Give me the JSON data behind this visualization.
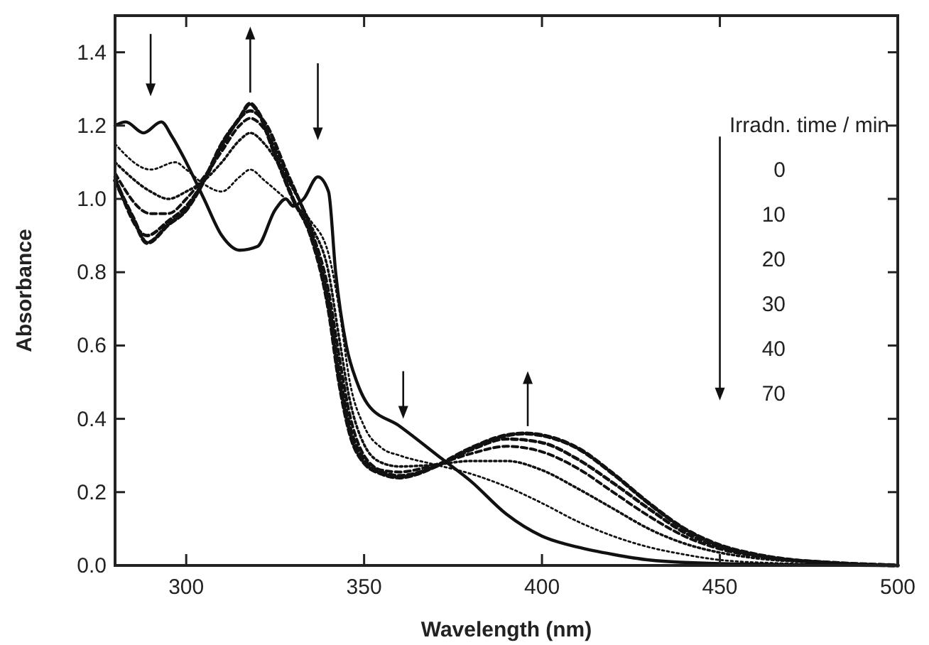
{
  "chart_data": {
    "type": "line",
    "xlabel": "Wavelength (nm)",
    "ylabel": "Absorbance",
    "xlim": [
      280,
      500
    ],
    "xticks": [
      300,
      350,
      400,
      450,
      500
    ],
    "ylim": [
      0,
      1.5
    ],
    "yticks": [
      {
        "value": 0,
        "label": "0.0"
      },
      {
        "value": 0.2,
        "label": "0.2"
      },
      {
        "value": 0.4,
        "label": "0.4"
      },
      {
        "value": 0.6,
        "label": "0.6"
      },
      {
        "value": 0.8,
        "label": "0.8"
      },
      {
        "value": 1,
        "label": "1.0"
      },
      {
        "value": 1.2,
        "label": "1.2"
      },
      {
        "value": 1.4,
        "label": "1.4"
      }
    ],
    "annotations": [
      "Irradn. time / min",
      "0",
      "10",
      "20",
      "30",
      "40",
      "70"
    ],
    "series": [
      {
        "color": "#111111",
        "line_style": "solid",
        "x": [
          280,
          283,
          288,
          293,
          296,
          300,
          305,
          310,
          315,
          320,
          325,
          328,
          330,
          333,
          337,
          340,
          342,
          345,
          348,
          351,
          360,
          372,
          380,
          390,
          400,
          410,
          420,
          430,
          450,
          500
        ],
        "values": [
          1.2,
          1.21,
          1.18,
          1.21,
          1.17,
          1.1,
          1.0,
          0.9,
          0.86,
          0.87,
          0.97,
          1.0,
          0.98,
          1.0,
          1.06,
          1.02,
          0.8,
          0.6,
          0.5,
          0.44,
          0.38,
          0.29,
          0.23,
          0.14,
          0.08,
          0.05,
          0.03,
          0.015,
          0.005,
          0
        ]
      },
      {
        "color": "#111111",
        "line_style": "dotted",
        "x": [
          280,
          290,
          297,
          300,
          305,
          310,
          315,
          318,
          322,
          328,
          335,
          340,
          343,
          346,
          350,
          355,
          360,
          370,
          380,
          390,
          400,
          410,
          420,
          430,
          440,
          450,
          470,
          500
        ],
        "values": [
          1.15,
          1.08,
          1.1,
          1.08,
          1.04,
          1.02,
          1.06,
          1.08,
          1.05,
          1.0,
          0.94,
          0.85,
          0.7,
          0.5,
          0.38,
          0.32,
          0.3,
          0.275,
          0.25,
          0.215,
          0.17,
          0.12,
          0.08,
          0.05,
          0.03,
          0.015,
          0.005,
          0
        ]
      },
      {
        "color": "#111111",
        "line_style": "dotted",
        "x": [
          280,
          290,
          295,
          300,
          305,
          310,
          315,
          318,
          322,
          328,
          335,
          340,
          343,
          346,
          350,
          355,
          360,
          370,
          380,
          390,
          400,
          410,
          420,
          430,
          440,
          450,
          460,
          480,
          500
        ],
        "values": [
          1.1,
          1.02,
          1.0,
          1.02,
          1.05,
          1.1,
          1.16,
          1.18,
          1.15,
          1.06,
          0.93,
          0.8,
          0.62,
          0.45,
          0.33,
          0.28,
          0.27,
          0.275,
          0.285,
          0.285,
          0.26,
          0.21,
          0.155,
          0.1,
          0.06,
          0.035,
          0.02,
          0.007,
          0
        ]
      },
      {
        "color": "#111111",
        "line_style": "dashed",
        "x": [
          280,
          290,
          295,
          300,
          305,
          310,
          315,
          318,
          322,
          328,
          335,
          340,
          343,
          346,
          350,
          355,
          360,
          370,
          380,
          390,
          400,
          410,
          420,
          430,
          440,
          450,
          460,
          480,
          500
        ],
        "values": [
          1.07,
          0.96,
          0.96,
          1.0,
          1.06,
          1.13,
          1.2,
          1.22,
          1.19,
          1.07,
          0.92,
          0.75,
          0.57,
          0.41,
          0.3,
          0.26,
          0.255,
          0.275,
          0.305,
          0.325,
          0.31,
          0.265,
          0.2,
          0.135,
          0.08,
          0.045,
          0.025,
          0.008,
          0
        ]
      },
      {
        "color": "#111111",
        "line_style": "dashed",
        "x": [
          280,
          289,
          295,
          300,
          305,
          310,
          315,
          318,
          322,
          328,
          335,
          340,
          343,
          346,
          350,
          355,
          360,
          370,
          380,
          390,
          400,
          410,
          420,
          430,
          440,
          450,
          460,
          480,
          500
        ],
        "values": [
          1.06,
          0.9,
          0.94,
          0.98,
          1.05,
          1.14,
          1.22,
          1.24,
          1.21,
          1.08,
          0.91,
          0.72,
          0.53,
          0.38,
          0.29,
          0.255,
          0.245,
          0.27,
          0.315,
          0.345,
          0.335,
          0.29,
          0.225,
          0.155,
          0.09,
          0.05,
          0.028,
          0.008,
          0
        ]
      },
      {
        "color": "#111111",
        "line_style": "dashed",
        "x": [
          280,
          285,
          289,
          295,
          300,
          305,
          310,
          315,
          318,
          320,
          325,
          330,
          335,
          340,
          343,
          346,
          350,
          355,
          360,
          365,
          370,
          380,
          390,
          395,
          400,
          410,
          420,
          430,
          440,
          450,
          460,
          470,
          480,
          500
        ],
        "values": [
          1.05,
          0.95,
          0.88,
          0.93,
          0.97,
          1.05,
          1.15,
          1.22,
          1.26,
          1.24,
          1.12,
          1.0,
          0.9,
          0.7,
          0.5,
          0.36,
          0.28,
          0.25,
          0.24,
          0.25,
          0.27,
          0.32,
          0.355,
          0.36,
          0.355,
          0.32,
          0.25,
          0.17,
          0.1,
          0.055,
          0.03,
          0.015,
          0.008,
          0
        ]
      }
    ]
  }
}
